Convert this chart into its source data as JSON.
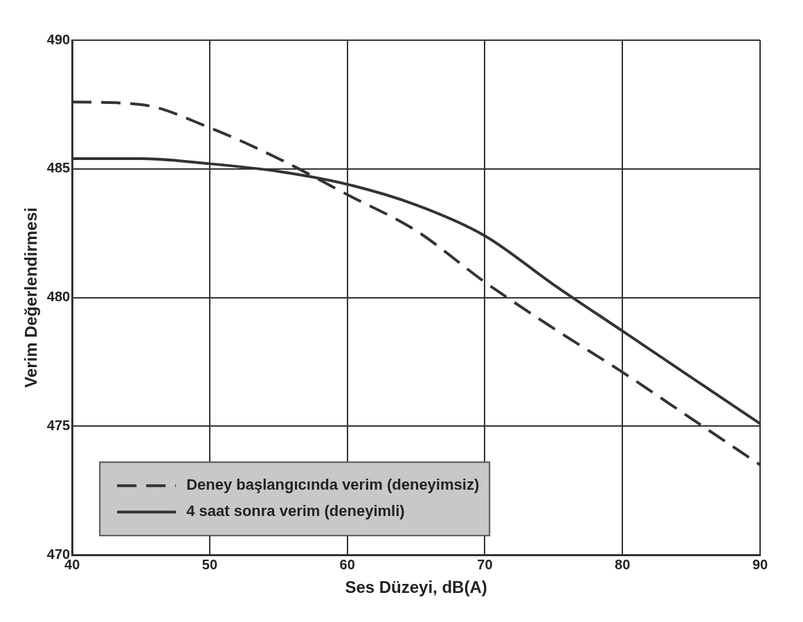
{
  "chart_data": {
    "type": "line",
    "xlabel": "Ses Düzeyi, dB(A)",
    "ylabel": "Verim Değerlendirmesi",
    "xlim": [
      40,
      90
    ],
    "xticks": [
      40,
      50,
      60,
      70,
      80,
      90
    ],
    "ylim": [
      470,
      490
    ],
    "yticks": [
      470,
      475,
      480,
      485,
      490
    ],
    "grid": true,
    "legend": "bottom left",
    "marker": "none",
    "series": [
      {
        "name": "Deney başlangıcında verim (deneyimsiz)",
        "color": "#333333",
        "line_style": "dashed",
        "x": [
          40,
          45,
          50,
          55,
          60,
          65,
          70,
          75,
          80,
          85,
          90
        ],
        "values": [
          487.6,
          487.5,
          486.6,
          485.4,
          484.0,
          482.6,
          480.6,
          478.8,
          477.1,
          475.3,
          473.5
        ]
      },
      {
        "name": "4 saat sonra verim (deneyimli)",
        "color": "#333333",
        "line_style": "solid",
        "x": [
          40,
          45,
          50,
          55,
          60,
          65,
          70,
          75,
          80,
          85,
          90
        ],
        "values": [
          485.4,
          485.4,
          485.2,
          484.9,
          484.4,
          483.6,
          482.4,
          480.5,
          478.7,
          476.9,
          475.1
        ]
      }
    ]
  }
}
